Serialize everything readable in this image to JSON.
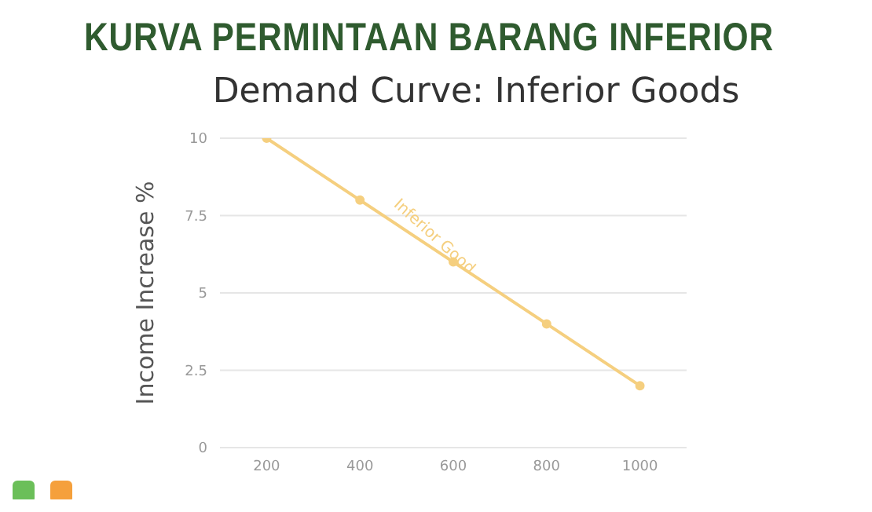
{
  "chart_data": {
    "type": "line",
    "title": "KURVA PERMINTAAN BARANG INFERIOR",
    "subtitle": "Demand Curve: Inferior Goods",
    "ylabel": "Income Increase %",
    "x": [
      200,
      400,
      600,
      800,
      1000
    ],
    "series": [
      {
        "color": "#f5cf7f",
        "values": [
          10,
          8,
          6,
          4,
          2
        ]
      }
    ],
    "xlim": [
      100,
      1100
    ],
    "xticks": [
      200,
      400,
      600,
      800,
      1000
    ],
    "ylim": [
      0,
      10
    ],
    "yticks": [
      0,
      2.5,
      5,
      7.5,
      10
    ],
    "grid": "y",
    "marker": "circle",
    "line_style": "solid",
    "annotations": [
      {
        "text": "Inferior Good",
        "x": 600,
        "y": 6
      }
    ]
  }
}
